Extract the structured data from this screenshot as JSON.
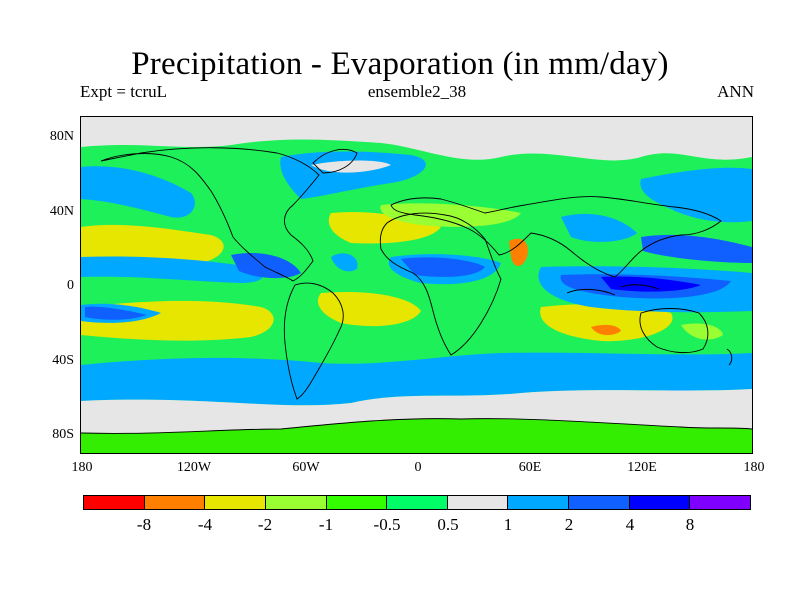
{
  "title": "Precipitation - Evaporation (in mm/day)",
  "expt_label": "Expt = tcruL",
  "run_label": "ensemble2_38",
  "period_label": "ANN",
  "lat_labels": [
    "80N",
    "40N",
    "0",
    "40S",
    "80S"
  ],
  "lon_labels": [
    "180",
    "120W",
    "60W",
    "0",
    "60E",
    "120E",
    "180"
  ],
  "colorbar": {
    "colors": [
      "#ff0000",
      "#ff8000",
      "#e6e600",
      "#99ff33",
      "#33ff00",
      "#00ff66",
      "#e6e6e6",
      "#00a8ff",
      "#1060ff",
      "#0000ff",
      "#7f00ff"
    ],
    "labels": [
      "-8",
      "-4",
      "-2",
      "-1",
      "-0.5",
      "0.5",
      "1",
      "2",
      "4",
      "8"
    ]
  },
  "map_colors": {
    "ocean_base": "#1ef05a",
    "land_base": "#33ee00",
    "gray": "#e6e6e6",
    "light_blue": "#00a8ff",
    "blue": "#1060ff",
    "dark_blue": "#0000ff",
    "yellow": "#e6e600",
    "yellow_green": "#99ff33",
    "orange": "#ff8000",
    "coast": "#000000"
  }
}
